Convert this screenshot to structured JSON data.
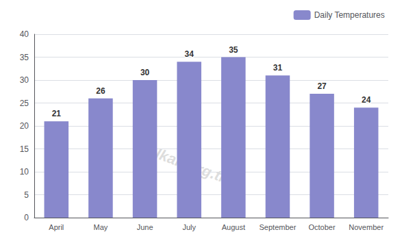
{
  "chart_data": {
    "type": "bar",
    "categories": [
      "April",
      "May",
      "June",
      "July",
      "August",
      "September",
      "October",
      "November"
    ],
    "series": [
      {
        "name": "Daily Temperatures",
        "color": "#8888cc",
        "values": [
          21,
          26,
          30,
          34,
          35,
          31,
          27,
          24
        ]
      }
    ],
    "ylim": [
      0,
      40
    ],
    "yticks": [
      0,
      5,
      10,
      15,
      20,
      25,
      30,
      35,
      40
    ],
    "grid": true,
    "legend": "upper right",
    "data_labels": true,
    "annotations": [
      "kalkan.org.tr"
    ]
  }
}
